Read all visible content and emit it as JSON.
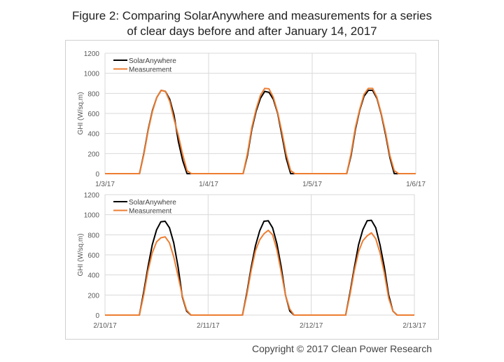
{
  "title_line1": "Figure 2: Comparing SolarAnywhere and measurements for a series",
  "title_line2": "of clear days before and after January 14, 2017",
  "copyright": "Copyright © 2017 Clean Power Research",
  "colors": {
    "SolarAnywhere": "#000000",
    "Measurement": "#ED7D31",
    "grid": "#D9D9D9"
  },
  "chart_data": [
    {
      "type": "line",
      "ylabel": "GHI (W/sq.m)",
      "ylim": [
        0,
        1200
      ],
      "yticks": [
        "0",
        "200",
        "400",
        "600",
        "800",
        "1000",
        "1200"
      ],
      "xticks": [
        "1/3/17",
        "1/4/17",
        "1/5/17",
        "1/6/17"
      ],
      "x_interval": "hourly",
      "grid": true,
      "legend": "top-left",
      "series": [
        {
          "name": "SolarAnywhere",
          "values": [
            0,
            0,
            0,
            0,
            0,
            0,
            0,
            0,
            0,
            200,
            440,
            630,
            760,
            830,
            820,
            740,
            580,
            320,
            130,
            0,
            0,
            0,
            0,
            0,
            0,
            0,
            0,
            0,
            0,
            0,
            0,
            0,
            0,
            180,
            440,
            620,
            750,
            820,
            810,
            740,
            600,
            380,
            150,
            0,
            0,
            0,
            0,
            0,
            0,
            0,
            0,
            0,
            0,
            0,
            0,
            0,
            0,
            180,
            440,
            630,
            770,
            830,
            830,
            750,
            590,
            390,
            160,
            0,
            0,
            0,
            0,
            0,
            0
          ]
        },
        {
          "name": "Measurement",
          "values": [
            0,
            0,
            0,
            0,
            0,
            0,
            0,
            0,
            0,
            190,
            430,
            620,
            760,
            830,
            820,
            720,
            540,
            380,
            190,
            30,
            0,
            0,
            0,
            0,
            0,
            0,
            0,
            0,
            0,
            0,
            0,
            0,
            0,
            200,
            460,
            640,
            780,
            850,
            845,
            760,
            610,
            410,
            190,
            30,
            0,
            0,
            0,
            0,
            0,
            0,
            0,
            0,
            0,
            0,
            0,
            0,
            0,
            200,
            460,
            640,
            790,
            850,
            850,
            760,
            600,
            410,
            180,
            30,
            0,
            0,
            0,
            0,
            0
          ]
        }
      ]
    },
    {
      "type": "line",
      "ylabel": "GHI (W/sq.m)",
      "ylim": [
        0,
        1200
      ],
      "yticks": [
        "0",
        "200",
        "400",
        "600",
        "800",
        "1000",
        "1200"
      ],
      "xticks": [
        "2/10/17",
        "2/11/17",
        "2/12/17",
        "2/13/17"
      ],
      "x_interval": "hourly",
      "grid": true,
      "legend": "top-left",
      "series": [
        {
          "name": "SolarAnywhere",
          "values": [
            0,
            0,
            0,
            0,
            0,
            0,
            0,
            0,
            0,
            230,
            480,
            700,
            850,
            930,
            935,
            870,
            720,
            480,
            180,
            40,
            0,
            0,
            0,
            0,
            0,
            0,
            0,
            0,
            0,
            0,
            0,
            0,
            0,
            220,
            470,
            690,
            840,
            935,
            940,
            870,
            710,
            480,
            200,
            40,
            0,
            0,
            0,
            0,
            0,
            0,
            0,
            0,
            0,
            0,
            0,
            0,
            0,
            220,
            470,
            700,
            850,
            940,
            945,
            870,
            700,
            480,
            200,
            40,
            0,
            0,
            0,
            0,
            0
          ]
        },
        {
          "name": "Measurement",
          "values": [
            0,
            0,
            0,
            0,
            0,
            0,
            0,
            0,
            0,
            200,
            440,
            620,
            730,
            770,
            780,
            720,
            580,
            390,
            190,
            50,
            0,
            0,
            0,
            0,
            0,
            0,
            0,
            0,
            0,
            0,
            0,
            0,
            0,
            200,
            440,
            640,
            750,
            810,
            845,
            800,
            650,
            430,
            200,
            60,
            0,
            0,
            0,
            0,
            0,
            0,
            0,
            0,
            0,
            0,
            0,
            0,
            0,
            200,
            440,
            630,
            740,
            790,
            820,
            760,
            620,
            420,
            170,
            40,
            0,
            0,
            0,
            0,
            0
          ]
        }
      ]
    }
  ]
}
